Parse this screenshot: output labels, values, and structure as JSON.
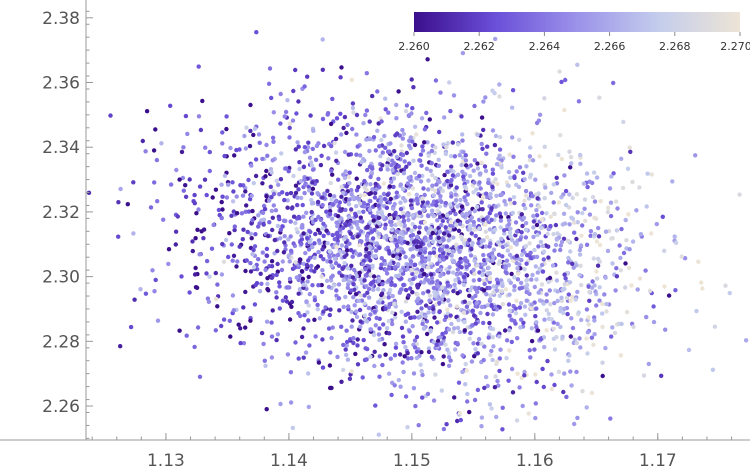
{
  "chart_data": {
    "type": "scatter",
    "title": "",
    "xlabel": "",
    "ylabel": "",
    "xlim": [
      1.1235,
      1.1775
    ],
    "ylim": [
      2.2495,
      2.3855
    ],
    "x_ticks": [
      "1.13",
      "1.14",
      "1.15",
      "1.16",
      "1.17"
    ],
    "y_ticks": [
      "2.26",
      "2.28",
      "2.30",
      "2.32",
      "2.34",
      "2.36",
      "2.38"
    ],
    "grid": false,
    "legend": "top-right",
    "point_count": 3200,
    "distribution": {
      "x_mean": 1.1505,
      "x_sd": 0.0087,
      "y_mean": 2.3095,
      "y_sd": 0.0205,
      "correlation": -0.18,
      "color_mean": 2.2645,
      "color_sd": 0.0027,
      "color_correlation_with_x": 0.4
    },
    "colorbar": {
      "min": 2.26,
      "max": 2.27,
      "ticks": [
        "2.260",
        "2.262",
        "2.264",
        "2.266",
        "2.268",
        "2.270"
      ],
      "colors": [
        "#3b0f8c",
        "#6a4fd8",
        "#9b92ea",
        "#c4cdec",
        "#ede4d6"
      ]
    },
    "axis_color": "#999999"
  }
}
